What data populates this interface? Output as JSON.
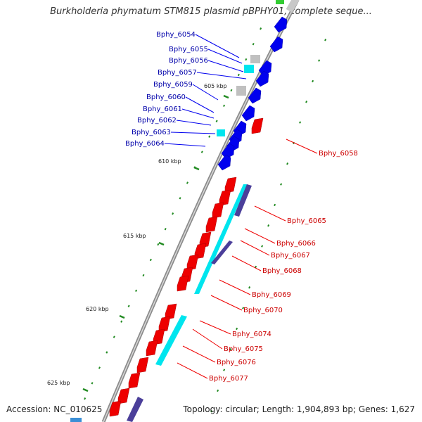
{
  "title": "Burkholderia phymatum STM815 plasmid pBPHY01, complete seque...",
  "footer": {
    "accession": "Accession: NC_010625",
    "topology": "Topology: circular; Length: 1,904,893 bp; Genes: 1,627"
  },
  "colors": {
    "backbone": "#8c8c8c",
    "forward_gene": "#0000ee",
    "reverse_gene": "#ee0000",
    "forward_label": "#0000aa",
    "reverse_label": "#cc0000",
    "rrna_like": "#00e5ee",
    "pseudo_like": "#c0c0c0",
    "operon_bar": "#4b3f9a",
    "tick": "#228b22"
  },
  "ticks": [
    {
      "label": "605 kbp"
    },
    {
      "label": "610 kbp"
    },
    {
      "label": "615 kbp"
    },
    {
      "label": "620 kbp"
    },
    {
      "label": "625 kbp"
    }
  ],
  "forward_labels": [
    "Bphy_6054",
    "Bphy_6055",
    "Bphy_6056",
    "Bphy_6057",
    "Bphy_6059",
    "Bphy_6060",
    "Bphy_6061",
    "Bphy_6062",
    "Bphy_6063",
    "Bphy_6064"
  ],
  "reverse_labels": [
    "Bphy_6058",
    "Bphy_6065",
    "Bphy_6066",
    "Bphy_6067",
    "Bphy_6068",
    "Bphy_6069",
    "Bphy_6070",
    "Bphy_6074",
    "Bphy_6075",
    "Bphy_6076",
    "Bphy_6077"
  ]
}
